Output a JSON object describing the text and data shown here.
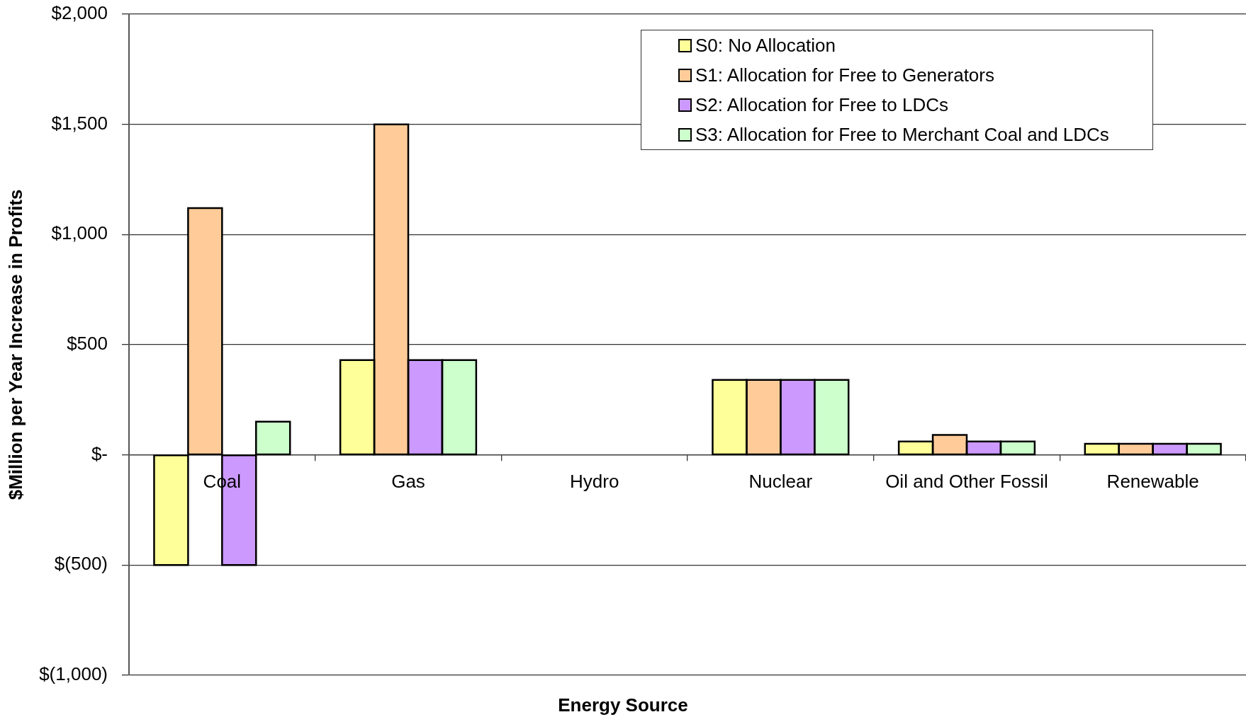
{
  "chart_data": {
    "type": "bar",
    "xlabel": "Energy Source",
    "ylabel": "$Million per Year Increase in Profits",
    "categories": [
      "Coal",
      "Gas",
      "Hydro",
      "Nuclear",
      "Oil and Other Fossil",
      "Renewable"
    ],
    "series": [
      {
        "name": "S0: No Allocation",
        "color": "#ffff99",
        "values": [
          -500,
          430,
          0,
          340,
          60,
          50
        ]
      },
      {
        "name": "S1: Allocation for Free to Generators",
        "color": "#ffcc99",
        "values": [
          1120,
          1500,
          0,
          340,
          90,
          50
        ]
      },
      {
        "name": "S2: Allocation for Free to LDCs",
        "color": "#cc99ff",
        "values": [
          -500,
          430,
          0,
          340,
          60,
          50
        ]
      },
      {
        "name": "S3: Allocation for Free to Merchant Coal and LDCs",
        "color": "#ccffcc",
        "values": [
          150,
          430,
          0,
          340,
          60,
          50
        ]
      }
    ],
    "ylim": [
      -1000,
      2000
    ],
    "yticks": [
      {
        "value": -1000,
        "label": "$(1,000)"
      },
      {
        "value": -500,
        "label": "$(500)"
      },
      {
        "value": 0,
        "label": "$-"
      },
      {
        "value": 500,
        "label": "$500"
      },
      {
        "value": 1000,
        "label": "$1,000"
      },
      {
        "value": 1500,
        "label": "$1,500"
      },
      {
        "value": 2000,
        "label": "$2,000"
      }
    ],
    "grid": "y",
    "legend": "top right"
  }
}
